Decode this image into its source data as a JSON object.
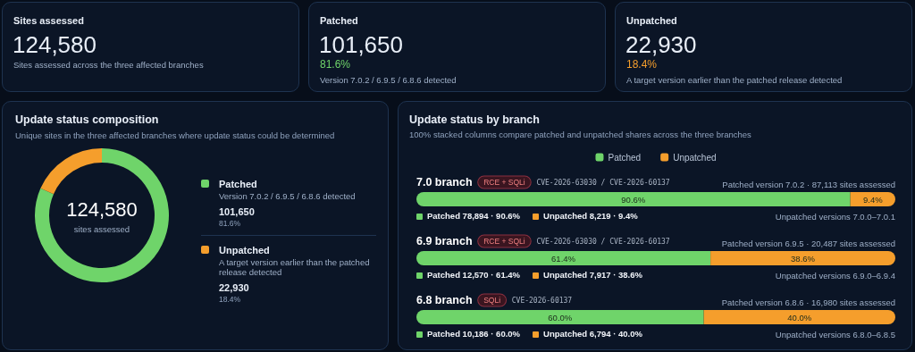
{
  "chart_data": [
    {
      "type": "other",
      "title": "Sites assessed",
      "annotations": [
        "124,580",
        "Sites assessed across the three affected branches"
      ]
    },
    {
      "type": "other",
      "title": "Patched",
      "colors": [
        "#6fd46a"
      ],
      "annotations": [
        "101,650",
        "81.6%",
        "Version 7.0.2 / 6.9.5 / 6.8.6 detected"
      ]
    },
    {
      "type": "other",
      "title": "Unpatched",
      "colors": [
        "#f59e2c"
      ],
      "annotations": [
        "22,930",
        "18.4%",
        "A target version earlier than the patched release detected"
      ]
    },
    {
      "type": "donut",
      "title": "Update status composition",
      "subtitle": "Unique sites in the three affected branches where update status could be determined",
      "categories": [
        "Patched",
        "Unpatched"
      ],
      "values": [
        81.6,
        18.4
      ],
      "colors": [
        "#6fd46a",
        "#f59e2c"
      ],
      "legend": "right",
      "annotations": [
        "124,580",
        "sites assessed",
        "Version 7.0.2 / 6.9.5 / 6.8.6 detected",
        "A target version earlier than the patched release detected",
        "101,650",
        "22,930",
        "81.6%",
        "18.4%"
      ]
    },
    {
      "type": "bar",
      "orientation": "horizontal",
      "stacked": true,
      "title": "Update status by branch",
      "subtitle": "100% stacked columns compare patched and unpatched shares across the three branches",
      "categories": [
        "7.0 branch",
        "6.9 branch",
        "6.8 branch"
      ],
      "xlim": [
        0,
        100
      ],
      "tick_labels": "y",
      "legend": "top",
      "series": [
        {
          "name": "Patched",
          "color": "#6fd46a",
          "values": [
            90.6,
            61.4,
            60.0
          ],
          "value_labels": [
            "90.6%",
            "61.4%",
            "60.0%"
          ]
        },
        {
          "name": "Unpatched",
          "color": "#f59e2c",
          "values": [
            9.4,
            38.6,
            40.0
          ],
          "value_labels": [
            "9.4%",
            "38.6%",
            "40.0%"
          ]
        }
      ],
      "annotations": [
        "RCE + SQLi",
        "CVE-2026-63030 / CVE-2026-60137",
        "Patched version 7.0.2 · 87,113 sites assessed",
        "Patched 78,894 · 90.6%",
        "Unpatched 8,219 · 9.4%",
        "Unpatched versions 7.0.0–7.0.1",
        "RCE + SQLi",
        "CVE-2026-63030 / CVE-2026-60137",
        "Patched version 6.9.5 · 20,487 sites assessed",
        "Patched 12,570 · 61.4%",
        "Unpatched 7,917 · 38.6%",
        "Unpatched versions 6.9.0–6.9.4",
        "SQLi",
        "CVE-2026-60137",
        "Patched version 6.8.6 · 16,980 sites assessed",
        "Patched 10,186 · 60.0%",
        "Unpatched 6,794 · 40.0%",
        "Unpatched versions 6.8.0–6.8.5"
      ]
    }
  ]
}
